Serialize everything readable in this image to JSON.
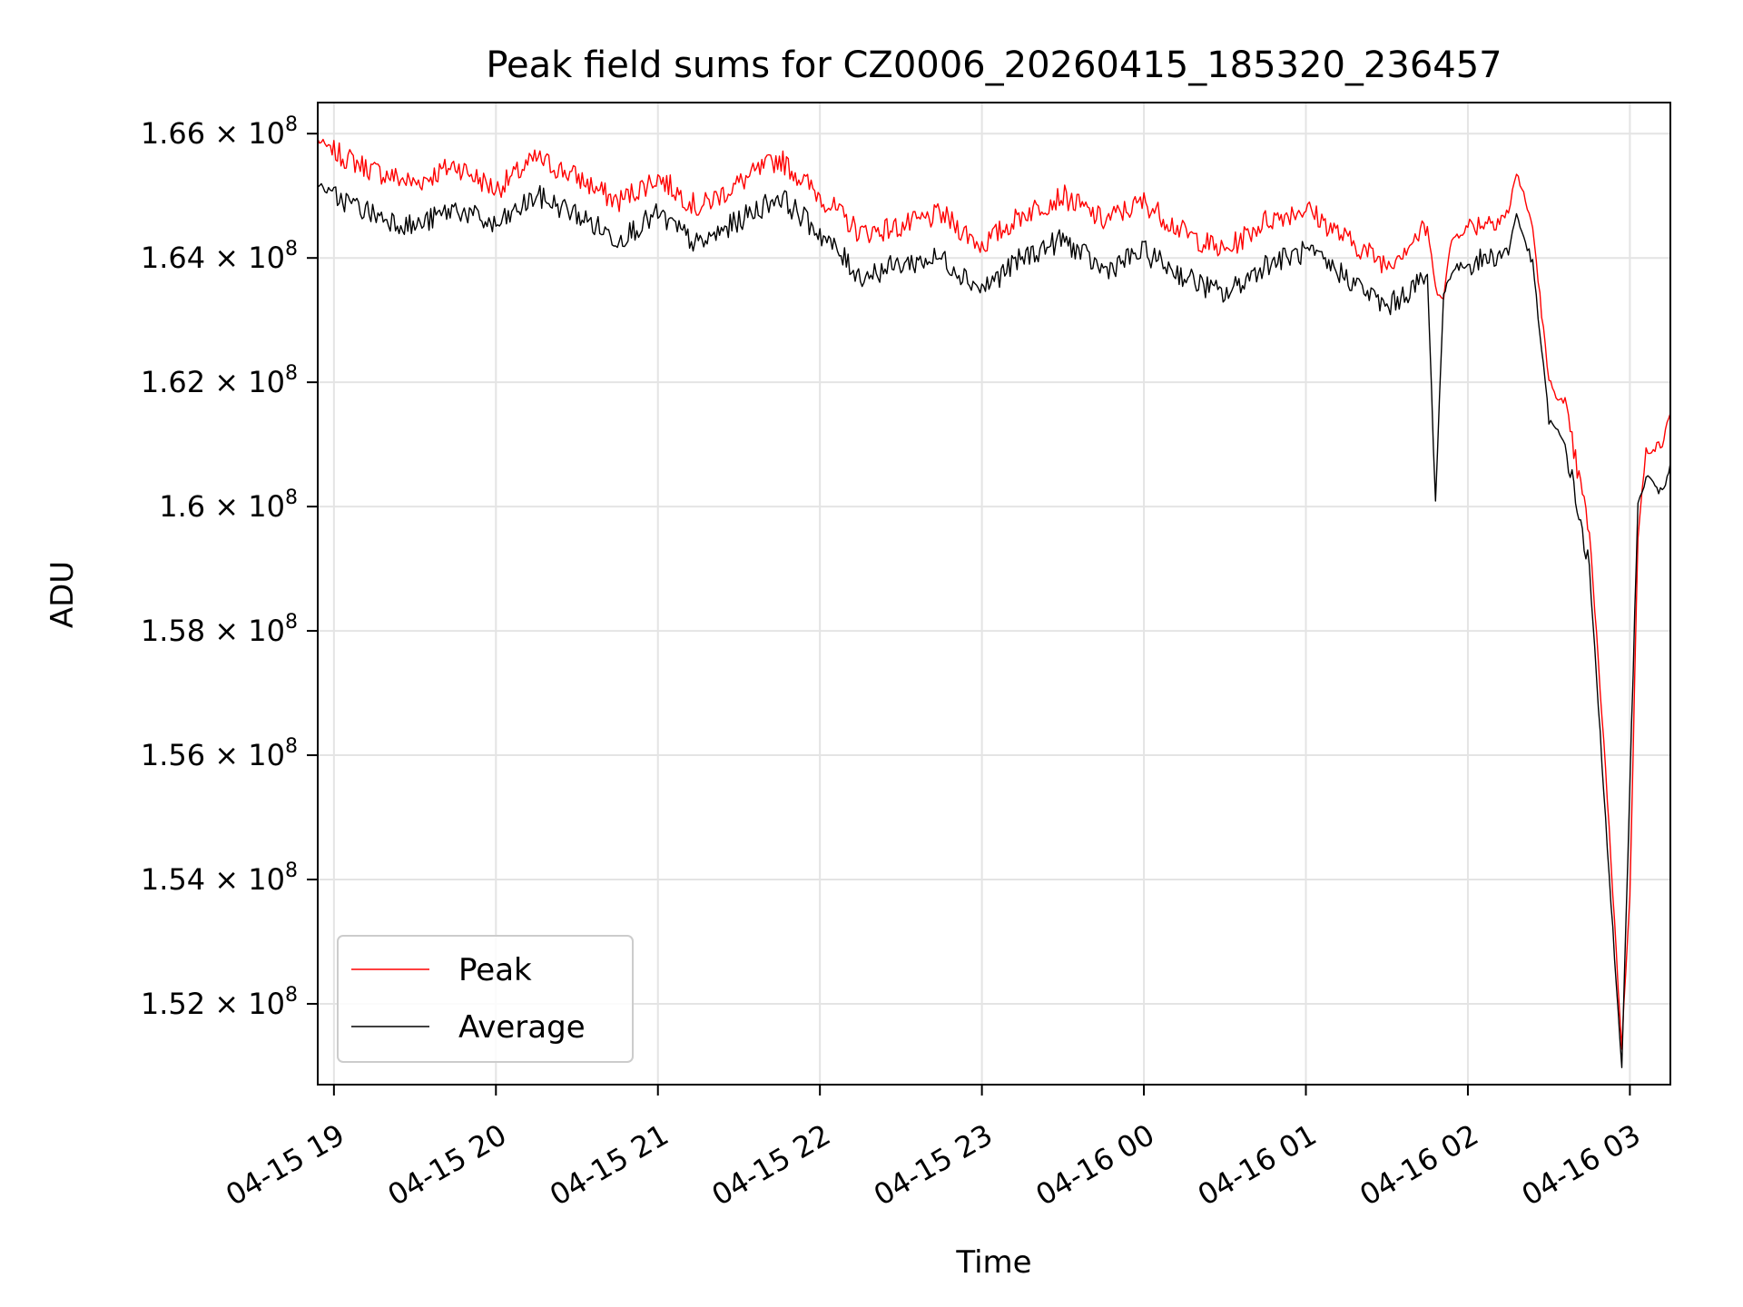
{
  "chart_data": {
    "type": "line",
    "title": "Peak field sums for CZ0006_20260415_185320_236457",
    "xlabel": "Time",
    "ylabel": "ADU",
    "grid": true,
    "legend_position": "bottom-left",
    "x_unit": "hours since 04-15 19:00",
    "xlim": [
      -0.1,
      8.25
    ],
    "ylim": [
      150700000,
      166500000
    ],
    "x_ticks": [
      {
        "value": 0,
        "label": "04-15 19"
      },
      {
        "value": 1,
        "label": "04-15 20"
      },
      {
        "value": 2,
        "label": "04-15 21"
      },
      {
        "value": 3,
        "label": "04-15 22"
      },
      {
        "value": 4,
        "label": "04-15 23"
      },
      {
        "value": 5,
        "label": "04-16 00"
      },
      {
        "value": 6,
        "label": "04-16 01"
      },
      {
        "value": 7,
        "label": "04-16 02"
      },
      {
        "value": 8,
        "label": "04-16 03"
      }
    ],
    "y_ticks": [
      {
        "value": 152000000,
        "mantissa": "1.52",
        "exp": "8"
      },
      {
        "value": 154000000,
        "mantissa": "1.54",
        "exp": "8"
      },
      {
        "value": 156000000,
        "mantissa": "1.56",
        "exp": "8"
      },
      {
        "value": 158000000,
        "mantissa": "1.58",
        "exp": "8"
      },
      {
        "value": 160000000,
        "mantissa": "1.6",
        "exp": "8"
      },
      {
        "value": 162000000,
        "mantissa": "1.62",
        "exp": "8"
      },
      {
        "value": 164000000,
        "mantissa": "1.64",
        "exp": "8"
      },
      {
        "value": 166000000,
        "mantissa": "1.66",
        "exp": "8"
      }
    ],
    "tick_multiplier": "× 10",
    "x": [
      -0.1,
      0.0,
      0.25,
      0.5,
      0.75,
      1.0,
      1.25,
      1.5,
      1.75,
      2.0,
      2.25,
      2.5,
      2.75,
      3.0,
      3.25,
      3.5,
      3.75,
      4.0,
      4.25,
      4.5,
      4.75,
      5.0,
      5.25,
      5.5,
      5.75,
      6.0,
      6.25,
      6.5,
      6.75,
      6.8,
      6.85,
      6.9,
      7.0,
      7.25,
      7.3,
      7.4,
      7.5,
      7.6,
      7.75,
      7.85,
      7.95,
      8.0,
      8.05,
      8.1,
      8.2,
      8.25
    ],
    "series": [
      {
        "name": "Peak",
        "color": "#ff0000",
        "values": [
          165900000,
          165700000,
          165400000,
          165200000,
          165500000,
          165100000,
          165600000,
          165300000,
          164900000,
          165300000,
          164800000,
          165200000,
          165600000,
          165000000,
          164400000,
          164500000,
          164700000,
          164200000,
          164700000,
          165000000,
          164600000,
          164900000,
          164400000,
          164100000,
          164600000,
          164800000,
          164300000,
          163900000,
          164500000,
          163500000,
          163400000,
          164300000,
          164500000,
          164700000,
          165400000,
          164500000,
          162000000,
          161600000,
          159600000,
          155800000,
          151300000,
          153800000,
          159500000,
          160900000,
          161000000,
          161500000
        ]
      },
      {
        "name": "Average",
        "color": "#000000",
        "values": [
          165200000,
          165000000,
          164700000,
          164500000,
          164800000,
          164500000,
          165000000,
          164700000,
          164300000,
          164700000,
          164200000,
          164600000,
          165000000,
          164400000,
          163700000,
          163900000,
          164000000,
          163500000,
          164000000,
          164300000,
          163800000,
          164100000,
          163700000,
          163400000,
          163900000,
          164100000,
          163700000,
          163200000,
          163700000,
          160100000,
          163400000,
          163800000,
          163900000,
          164100000,
          164700000,
          163900000,
          161400000,
          161000000,
          159000000,
          155000000,
          150900000,
          155600000,
          160000000,
          160500000,
          160200000,
          160700000
        ]
      }
    ]
  }
}
